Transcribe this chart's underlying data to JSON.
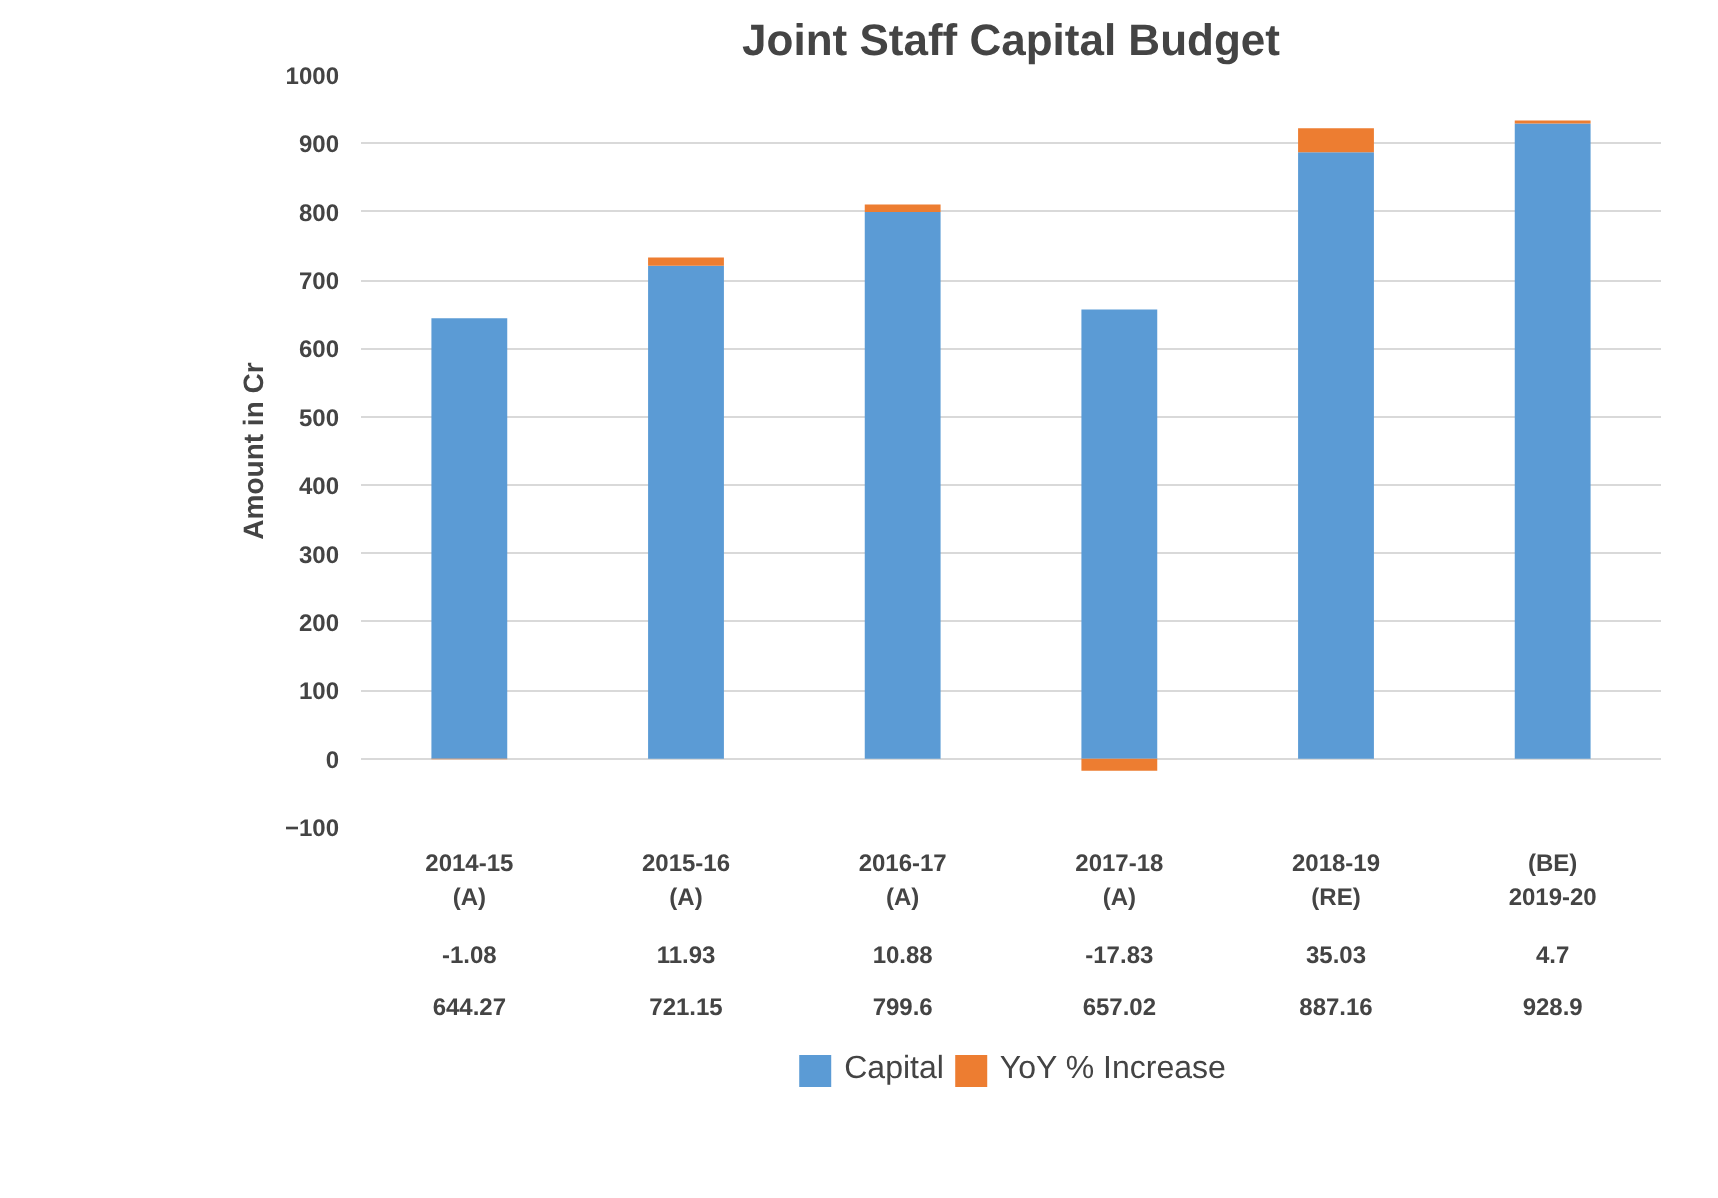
{
  "chart_data": {
    "type": "bar",
    "title": "Joint Staff Capital Budget",
    "ylabel": "Amount in Cr",
    "categories": [
      "2014-15\n(A)",
      "2015-16\n(A)",
      "2016-17\n(A)",
      "2017-18\n(A)",
      "2018-19\n(RE)",
      "(BE)\n2019-20"
    ],
    "stacked": true,
    "series": [
      {
        "name": "Capital",
        "color": "#5b9bd5",
        "values": [
          644.27,
          721.15,
          799.6,
          657.02,
          887.16,
          928.9
        ]
      },
      {
        "name": "YoY % Increase",
        "color": "#ed7d31",
        "values": [
          -1.08,
          11.93,
          10.88,
          -17.83,
          35.03,
          4.7
        ]
      }
    ],
    "ylim": [
      -100,
      1000
    ],
    "yticks": [
      -100,
      0,
      100,
      200,
      300,
      400,
      500,
      600,
      700,
      800,
      900,
      1000
    ],
    "grid": "y",
    "legend": "bottom",
    "data_labels": true
  }
}
